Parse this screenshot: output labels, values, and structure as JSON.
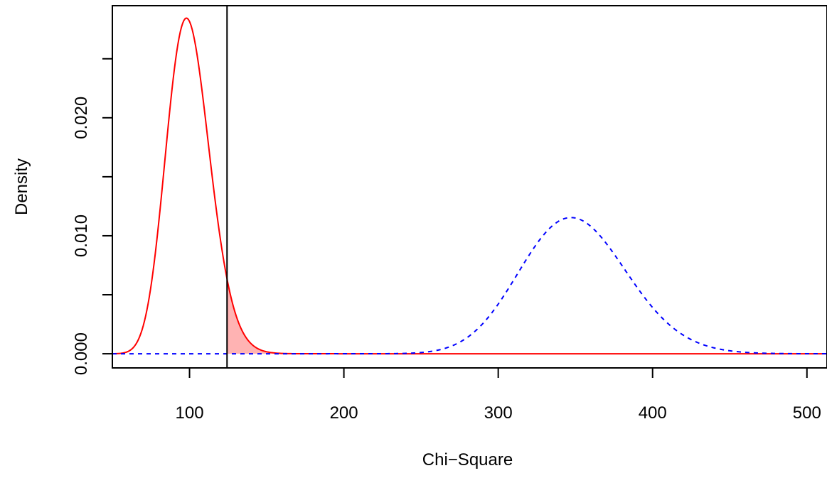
{
  "chart_data": {
    "type": "line",
    "title": "",
    "xlabel": "Chi−Square",
    "ylabel": "Density",
    "xlim": [
      50,
      513
    ],
    "ylim": [
      -0.0012,
      0.0295
    ],
    "x_ticks": [
      100,
      200,
      300,
      400,
      500
    ],
    "x_tick_labels": [
      "100",
      "200",
      "300",
      "400",
      "500"
    ],
    "y_ticks": [
      0.0,
      0.005,
      0.01,
      0.015,
      0.02,
      0.025
    ],
    "y_tick_labels": [
      "0.000",
      "",
      "0.010",
      "",
      "0.020",
      ""
    ],
    "grid": false,
    "legend": "none",
    "critical_value": 124.3,
    "series": [
      {
        "distribution": "chi-square",
        "df": 100,
        "ncp": 0,
        "line_style": "solid",
        "color": "#ff0000",
        "x_range": [
          50,
          513
        ]
      },
      {
        "distribution": "chi-square",
        "df": 100,
        "ncp": 250,
        "line_style": "dashed",
        "color": "#0000ff",
        "x_range": [
          50,
          513
        ]
      }
    ],
    "shaded_region": {
      "series_index": 0,
      "from": 124.3,
      "to": 513,
      "fill": "#ffb3b3"
    }
  },
  "colors": {
    "critical_line": "#000000",
    "axes": "#000000"
  }
}
